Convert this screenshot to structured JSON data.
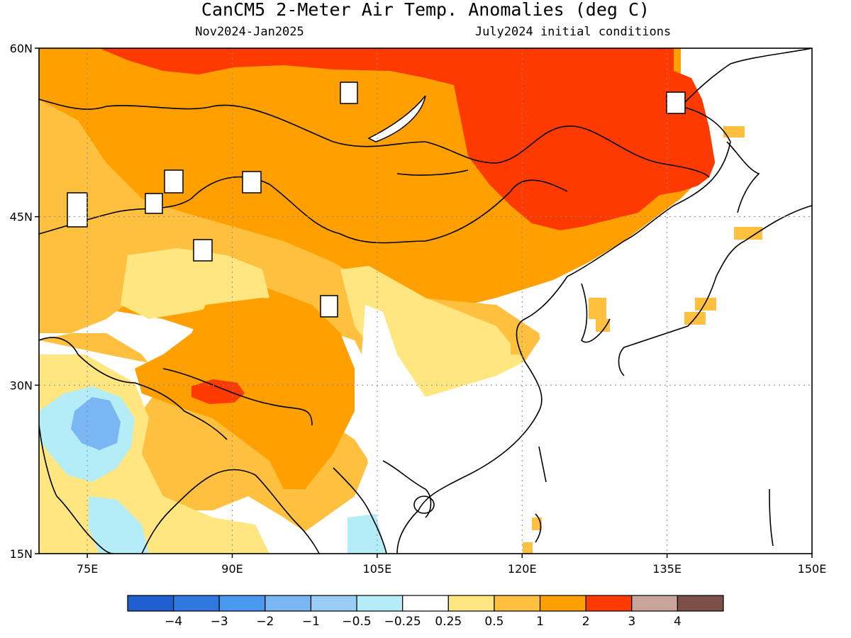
{
  "title": "CanCM5 2-Meter Air Temp. Anomalies (deg C)",
  "subtitle_left": "Nov2024-Jan2025",
  "subtitle_right": "July2024 initial conditions",
  "map": {
    "lon_range": [
      70,
      150
    ],
    "lat_range": [
      15,
      60
    ],
    "lon_ticks": [
      {
        "value": 75,
        "label": "75E"
      },
      {
        "value": 90,
        "label": "90E"
      },
      {
        "value": 105,
        "label": "105E"
      },
      {
        "value": 120,
        "label": "120E"
      },
      {
        "value": 135,
        "label": "135E"
      },
      {
        "value": 150,
        "label": "150E"
      }
    ],
    "lat_ticks": [
      {
        "value": 60,
        "label": "60N"
      },
      {
        "value": 45,
        "label": "45N"
      },
      {
        "value": 30,
        "label": "30N"
      },
      {
        "value": 15,
        "label": "15N"
      }
    ],
    "grid": "dotted"
  },
  "colorbar": {
    "bins": [
      "#1f5fd0",
      "#2e78e0",
      "#4a98f0",
      "#7ab6f4",
      "#9acdf6",
      "#b4ecf8",
      "#ffffff",
      "#ffe680",
      "#ffc040",
      "#ff9f00",
      "#ff3a00",
      "#c8a49a",
      "#7a5048"
    ],
    "labels": [
      "−4",
      "−3",
      "−2",
      "−1",
      "−0.5",
      "−0.25",
      "0.25",
      "0.5",
      "1",
      "2",
      "3",
      "4"
    ]
  },
  "regions": [
    {
      "name": "north-asia-warm",
      "anomaly": "1 to 2",
      "color": "#ff9f00"
    },
    {
      "name": "mongolia-northeast-china-hot",
      "anomaly": "2 to 3",
      "color": "#ff3a00"
    },
    {
      "name": "tibet-hot-spot",
      "anomaly": "2 to 3",
      "color": "#ff3a00"
    },
    {
      "name": "central-asia-mild",
      "anomaly": "0.5 to 1",
      "color": "#ffc040"
    },
    {
      "name": "india-cool",
      "anomaly": "-1 to -0.25",
      "color": "#9acdf6"
    },
    {
      "name": "south-east-china-neutral",
      "anomaly": "-0.25 to 0.25",
      "color": "#ffffff"
    }
  ]
}
